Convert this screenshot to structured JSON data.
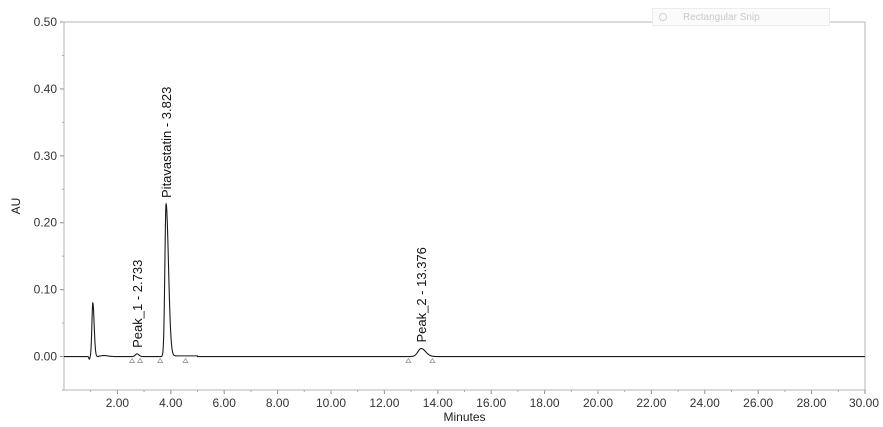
{
  "chart_data": {
    "type": "line",
    "xlabel": "Minutes",
    "ylabel": "AU",
    "xlim": [
      0,
      30
    ],
    "ylim": [
      -0.05,
      0.5
    ],
    "x_ticks": [
      "2.00",
      "4.00",
      "6.00",
      "8.00",
      "10.00",
      "12.00",
      "14.00",
      "16.00",
      "18.00",
      "20.00",
      "22.00",
      "24.00",
      "26.00",
      "28.00",
      "30.00"
    ],
    "y_ticks": [
      "0.00",
      "0.10",
      "0.20",
      "0.30",
      "0.40",
      "0.50"
    ],
    "grid": false,
    "baseline": 0.0,
    "peaks": [
      {
        "time": 1.08,
        "height": 0.08,
        "label": ""
      },
      {
        "time": 2.733,
        "height": 0.004,
        "label": "Peak_1 - 2.733"
      },
      {
        "time": 3.823,
        "height": 0.228,
        "label": "Pitavastatin - 3.823"
      },
      {
        "time": 13.376,
        "height": 0.012,
        "label": "Peak_2 - 13.376"
      }
    ],
    "integration_markers": [
      2.55,
      2.85,
      3.6,
      4.55,
      12.9,
      13.8
    ],
    "line_color": "#1a1a1a"
  },
  "overlay": {
    "snip_label": "Rectangular Snip"
  }
}
